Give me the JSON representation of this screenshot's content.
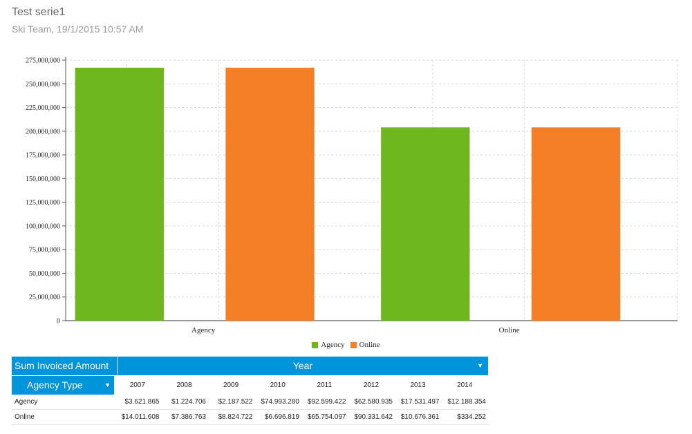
{
  "report": {
    "title": "Test serie1",
    "subtitle": "Ski Team, 19/1/2015 10:57 AM"
  },
  "chart_data": {
    "type": "bar",
    "categories": [
      "Agency",
      "Online"
    ],
    "series": [
      {
        "name": "Agency",
        "color": "#6fb71e",
        "values": [
          267000000,
          204000000
        ]
      },
      {
        "name": "Online",
        "color": "#f57f27",
        "values": [
          267000000,
          204000000
        ]
      }
    ],
    "ylim": [
      0,
      275000000
    ],
    "yticks": [
      "0",
      "25,000,000",
      "50,000,000",
      "75,000,000",
      "100,000,000",
      "125,000,000",
      "150,000,000",
      "175,000,000",
      "200,000,000",
      "225,000,000",
      "250,000,000",
      "275,000,000"
    ],
    "grid": true,
    "legend_placement": "bottom"
  },
  "pivot": {
    "measure_label": "Sum Invoiced Amount",
    "column_field": "Year",
    "row_field": "Agency Type",
    "years": [
      "2007",
      "2008",
      "2009",
      "2010",
      "2011",
      "2012",
      "2013",
      "2014"
    ],
    "rows": [
      {
        "label": "Agency",
        "values": [
          "$3.621.865",
          "$1.224.706",
          "$2.187.522",
          "$74.993.280",
          "$92.599.422",
          "$62.580.935",
          "$17.531.497",
          "$12.188.354"
        ]
      },
      {
        "label": "Online",
        "values": [
          "$14.011.608",
          "$7.386.763",
          "$8.824.722",
          "$6.696.819",
          "$65.754.097",
          "$90.331.642",
          "$10.676.361",
          "$334.252"
        ]
      }
    ]
  }
}
